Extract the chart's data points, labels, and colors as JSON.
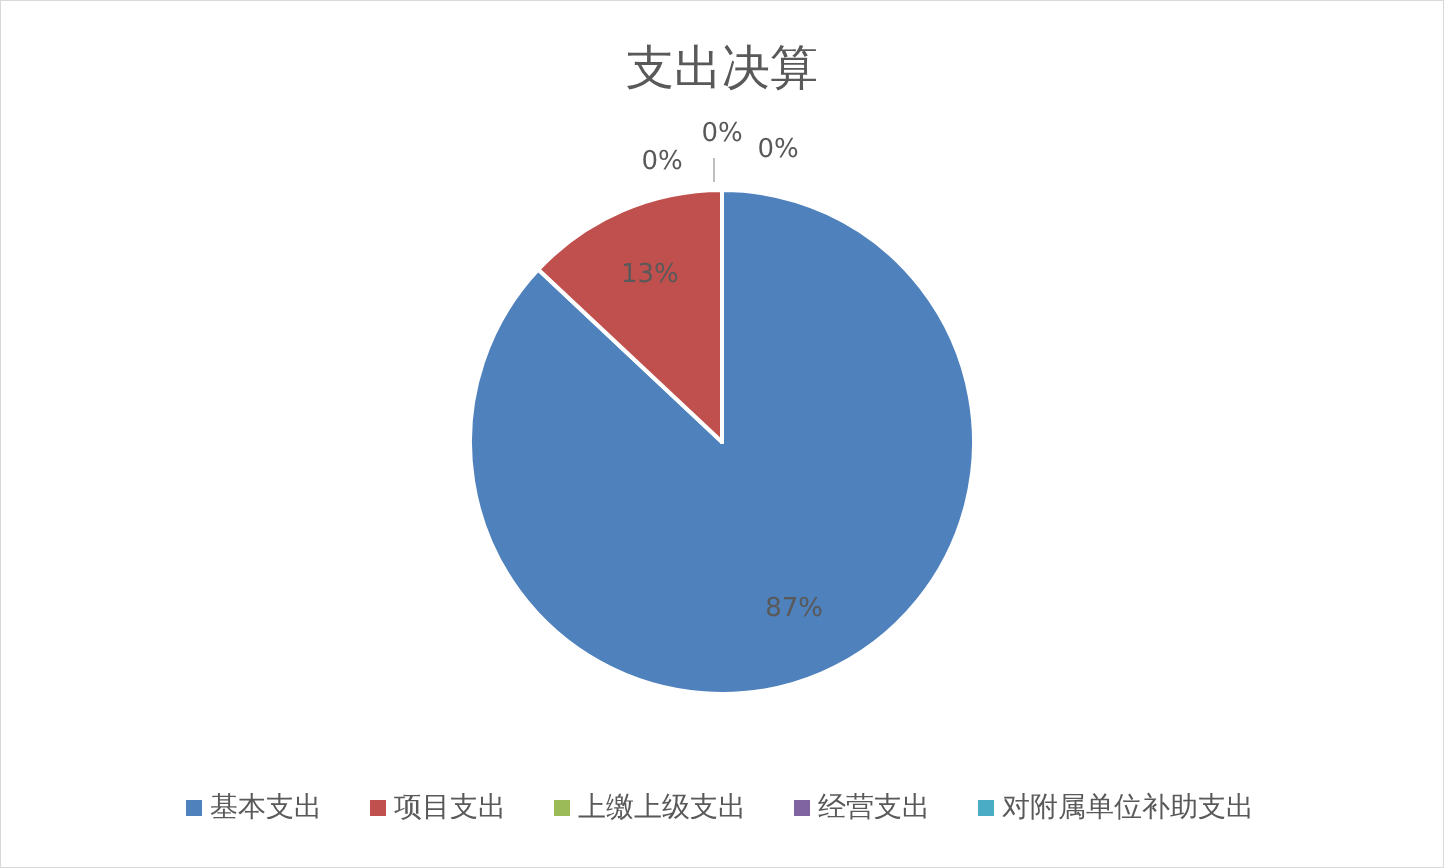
{
  "chart_data": {
    "type": "pie",
    "title": "支出决算",
    "categories": [
      "基本支出",
      "项目支出",
      "上缴上级支出",
      "经营支出",
      "对附属单位补助支出"
    ],
    "values": [
      87,
      13,
      0,
      0,
      0
    ],
    "colors": [
      "#4f81bd",
      "#c0504d",
      "#9bbb59",
      "#8064a2",
      "#4bacc6"
    ],
    "value_labels": [
      "87%",
      "13%",
      "0%",
      "0%",
      "0%"
    ],
    "legend": "bottom"
  }
}
